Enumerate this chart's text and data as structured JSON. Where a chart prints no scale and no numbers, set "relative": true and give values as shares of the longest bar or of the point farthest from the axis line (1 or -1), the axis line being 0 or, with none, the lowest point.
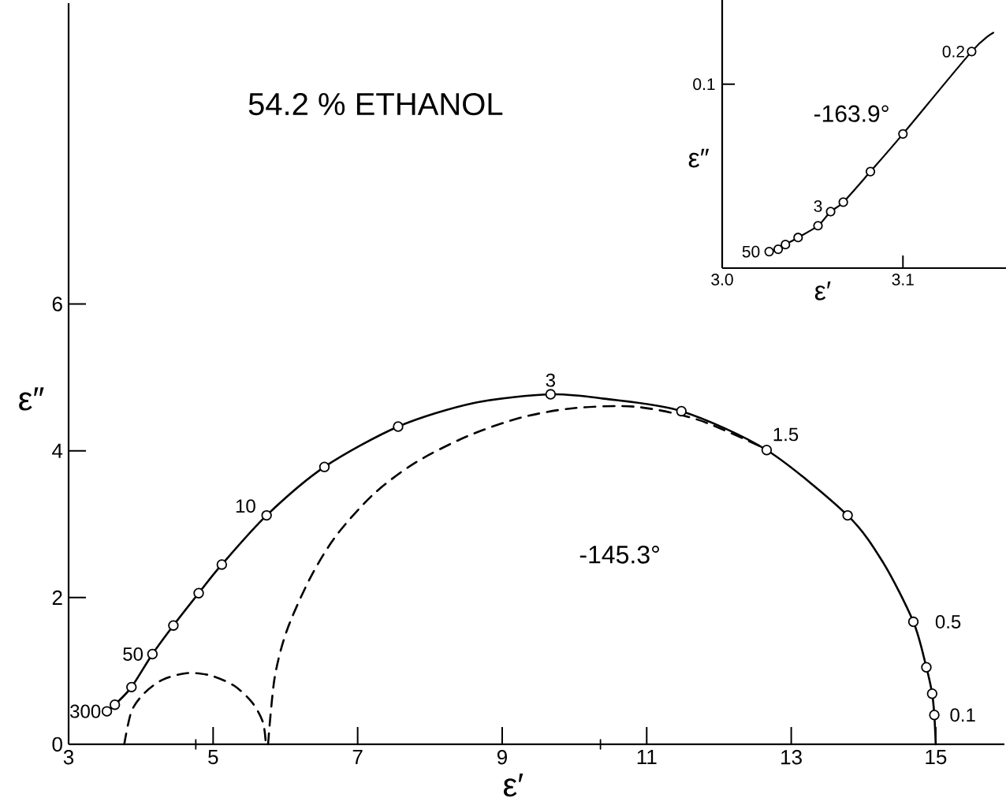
{
  "chart_data": [
    {
      "type": "scatter",
      "title": "54.2 % ETHANOL",
      "xlabel": "ε′",
      "ylabel": "ε″",
      "xlim": [
        3,
        15.95
      ],
      "ylim": [
        0,
        10.1
      ],
      "xticks": [
        3,
        5,
        7,
        9,
        11,
        13,
        15
      ],
      "yticks": [
        0,
        2,
        4,
        6
      ],
      "series": [
        {
          "color": "#000000",
          "marker": "circle",
          "x": [
            3.53,
            3.64,
            3.87,
            4.16,
            4.45,
            4.8,
            5.12,
            5.74,
            6.54,
            7.56,
            9.67,
            11.48,
            12.66,
            13.78,
            14.69,
            14.87,
            14.95,
            14.98
          ],
          "values": [
            0.45,
            0.54,
            0.78,
            1.23,
            1.62,
            2.06,
            2.45,
            3.12,
            3.78,
            4.33,
            4.77,
            4.54,
            4.01,
            3.12,
            1.67,
            1.05,
            0.69,
            0.4
          ]
        },
        {
          "type": "line",
          "color": "#000000",
          "marker": "none",
          "line_style": "solid",
          "x": [
            3.53,
            3.64,
            3.87,
            4.16,
            4.45,
            4.8,
            5.12,
            5.74,
            6.54,
            7.56,
            8.6,
            9.67,
            10.41,
            11.48,
            12.66,
            13.78,
            14.27,
            14.69,
            14.87,
            14.95,
            14.98,
            15.0
          ],
          "values": [
            0.45,
            0.54,
            0.78,
            1.23,
            1.62,
            2.06,
            2.45,
            3.12,
            3.78,
            4.33,
            4.65,
            4.77,
            4.71,
            4.54,
            4.01,
            3.12,
            2.48,
            1.67,
            1.05,
            0.69,
            0.4,
            0
          ]
        },
        {
          "type": "line",
          "color": "#000000",
          "marker": "none",
          "line_style": "dashed",
          "x": [
            5.76,
            5.85,
            6.02,
            6.34,
            6.7,
            7.22,
            7.8,
            8.52,
            9.25,
            9.98,
            10.85,
            11.72,
            12.66
          ],
          "values": [
            0,
            0.9,
            1.55,
            2.26,
            2.84,
            3.41,
            3.84,
            4.2,
            4.45,
            4.58,
            4.6,
            4.42,
            4.02
          ]
        },
        {
          "type": "line",
          "color": "#000000",
          "marker": "none",
          "line_style": "dashed",
          "x": [
            3.77,
            3.87,
            4.05,
            4.3,
            4.63,
            4.96,
            5.29,
            5.54,
            5.69,
            5.73
          ],
          "values": [
            0,
            0.45,
            0.7,
            0.88,
            0.97,
            0.94,
            0.8,
            0.57,
            0.3,
            0
          ]
        },
        {
          "color": "#000000",
          "marker": "cross",
          "x": [
            4.76,
            10.36
          ],
          "values": [
            0,
            0
          ]
        }
      ],
      "annotations": [
        {
          "text": "300",
          "x": 3.53,
          "y": 0.45
        },
        {
          "text": "50",
          "x": 4.16,
          "y": 1.23
        },
        {
          "text": "10",
          "x": 5.74,
          "y": 3.12
        },
        {
          "text": "3",
          "x": 9.67,
          "y": 4.77
        },
        {
          "text": "1.5",
          "x": 12.66,
          "y": 4.01
        },
        {
          "text": "0.5",
          "x": 14.69,
          "y": 1.67
        },
        {
          "text": "0.1",
          "x": 14.98,
          "y": 0.4
        },
        "-145.3°"
      ]
    },
    {
      "type": "scatter",
      "xlabel": "ε′",
      "ylabel": "ε″",
      "relative": true,
      "xlim": [
        3.0,
        3.157
      ],
      "xticks": [
        {
          "value": 3.0,
          "label": "3.0"
        },
        {
          "value": 3.1,
          "label": "3.1"
        }
      ],
      "series": [
        {
          "color": "#000000",
          "marker": "circle",
          "x": [
            3.026,
            3.031,
            3.035,
            3.042,
            3.053,
            3.06,
            3.067,
            3.082,
            3.1,
            3.138
          ],
          "values": [
            0.07,
            0.08,
            0.1,
            0.13,
            0.18,
            0.24,
            0.28,
            0.41,
            0.57,
            0.92
          ]
        },
        {
          "type": "line",
          "color": "#000000",
          "marker": "none",
          "line_style": "solid",
          "x": [
            3.026,
            3.031,
            3.035,
            3.042,
            3.053,
            3.06,
            3.067,
            3.082,
            3.1,
            3.138,
            3.15
          ],
          "values": [
            0.07,
            0.08,
            0.1,
            0.13,
            0.18,
            0.24,
            0.28,
            0.41,
            0.57,
            0.92,
            1
          ]
        }
      ],
      "annotations": [
        {
          "text": "50",
          "x": 3.026,
          "y": 0.07
        },
        {
          "text": "3",
          "x": 3.053,
          "y": 0.18
        },
        {
          "text": "0.2",
          "x": 3.138,
          "y": 0.92
        },
        "0.1",
        "-163.9°"
      ]
    }
  ]
}
